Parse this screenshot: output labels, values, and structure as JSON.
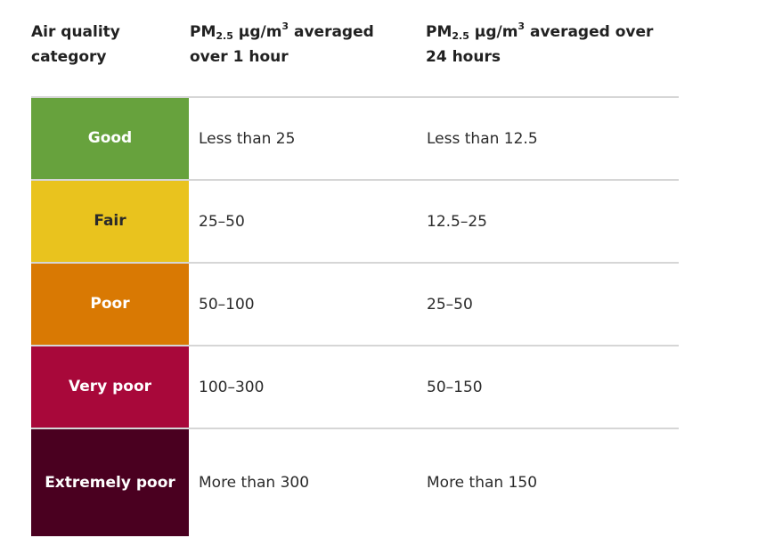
{
  "header": {
    "category_label": "Air quality category",
    "col1": {
      "pm": "PM",
      "sub": "2.5",
      "unit": " µg/m",
      "sup": "3",
      "rest": " averaged over 1 hour"
    },
    "col2": {
      "pm": "PM",
      "sub": "2.5",
      "unit": " µg/m",
      "sup": "3",
      "rest": " averaged over 24 hours"
    }
  },
  "rows": [
    {
      "category": "Good",
      "hour": "Less than 25",
      "day": "Less than 12.5",
      "bg": "#67a23d",
      "fg": "#ffffff"
    },
    {
      "category": "Fair",
      "hour": "25–50",
      "day": "12.5–25",
      "bg": "#e9c31e",
      "fg": "#2a2a2a"
    },
    {
      "category": "Poor",
      "hour": "50–100",
      "day": "25–50",
      "bg": "#d97903",
      "fg": "#ffffff"
    },
    {
      "category": "Very poor",
      "hour": "100–300",
      "day": "50–150",
      "bg": "#a8083a",
      "fg": "#ffffff"
    },
    {
      "category": "Extremely poor",
      "hour": "More than 300",
      "day": "More than 150",
      "bg": "#4a0020",
      "fg": "#ffffff"
    }
  ]
}
